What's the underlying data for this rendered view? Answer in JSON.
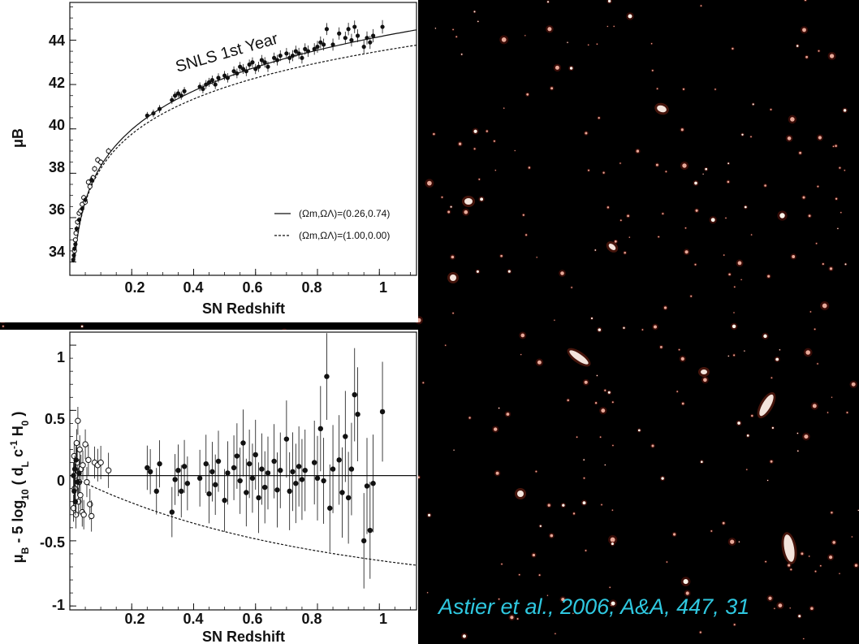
{
  "chart_data": [
    {
      "type": "scatter",
      "title": "",
      "annotation": "SNLS 1st Year",
      "xlabel": "SN Redshift",
      "ylabel": "μB",
      "xlim": [
        0.0,
        1.12
      ],
      "ylim": [
        33.4,
        45.7
      ],
      "xticks": [
        "0.2",
        "0.4",
        "0.6",
        "0.8",
        "1"
      ],
      "yticks": [
        "34",
        "36",
        "38",
        "40",
        "42",
        "44"
      ],
      "legend": {
        "placement": "bottom-right",
        "entries": [
          {
            "style": "solid",
            "label": "(Ωm,ΩΛ)=(0.26,0.74)",
            "omega_m": 0.26,
            "omega_l": 0.74
          },
          {
            "style": "dashed",
            "label": "(Ωm,ΩΛ)=(1.00,0.00)",
            "omega_m": 1.0,
            "omega_l": 0.0
          }
        ]
      },
      "series": [
        {
          "marker": "open-circle",
          "points": [
            [
              0.015,
              34.5
            ],
            [
              0.018,
              35.0
            ],
            [
              0.02,
              35.3
            ],
            [
              0.025,
              35.8
            ],
            [
              0.03,
              36.2
            ],
            [
              0.035,
              36.3
            ],
            [
              0.04,
              36.6
            ],
            [
              0.045,
              36.9
            ],
            [
              0.05,
              36.7
            ],
            [
              0.06,
              37.6
            ],
            [
              0.065,
              37.4
            ],
            [
              0.075,
              37.8
            ],
            [
              0.08,
              38.2
            ],
            [
              0.09,
              38.6
            ],
            [
              0.1,
              38.5
            ],
            [
              0.125,
              39.0
            ]
          ]
        },
        {
          "marker": "filled-circle",
          "points": [
            [
              0.011,
              34.1
            ],
            [
              0.013,
              34.3
            ],
            [
              0.015,
              34.6
            ],
            [
              0.018,
              34.8
            ],
            [
              0.022,
              35.5
            ],
            [
              0.03,
              35.9
            ],
            [
              0.04,
              36.4
            ],
            [
              0.05,
              36.8
            ],
            [
              0.07,
              37.7
            ],
            [
              0.25,
              40.6
            ],
            [
              0.27,
              40.7
            ],
            [
              0.29,
              40.9
            ],
            [
              0.33,
              41.3
            ],
            [
              0.34,
              41.5
            ],
            [
              0.35,
              41.6
            ],
            [
              0.36,
              41.5
            ],
            [
              0.37,
              41.7
            ],
            [
              0.42,
              41.9
            ],
            [
              0.43,
              41.8
            ],
            [
              0.44,
              42.0
            ],
            [
              0.45,
              42.1
            ],
            [
              0.46,
              42.2
            ],
            [
              0.47,
              42.0
            ],
            [
              0.48,
              42.3
            ],
            [
              0.5,
              42.4
            ],
            [
              0.51,
              42.3
            ],
            [
              0.53,
              42.6
            ],
            [
              0.54,
              42.5
            ],
            [
              0.55,
              42.8
            ],
            [
              0.56,
              42.7
            ],
            [
              0.57,
              42.6
            ],
            [
              0.58,
              42.9
            ],
            [
              0.59,
              43.0
            ],
            [
              0.6,
              42.7
            ],
            [
              0.61,
              42.8
            ],
            [
              0.62,
              43.1
            ],
            [
              0.63,
              43.0
            ],
            [
              0.64,
              42.8
            ],
            [
              0.66,
              43.2
            ],
            [
              0.67,
              43.1
            ],
            [
              0.68,
              43.3
            ],
            [
              0.7,
              43.4
            ],
            [
              0.71,
              43.2
            ],
            [
              0.72,
              43.3
            ],
            [
              0.73,
              43.5
            ],
            [
              0.74,
              43.4
            ],
            [
              0.75,
              43.2
            ],
            [
              0.76,
              43.6
            ],
            [
              0.77,
              43.5
            ],
            [
              0.79,
              43.6
            ],
            [
              0.8,
              43.7
            ],
            [
              0.81,
              43.9
            ],
            [
              0.82,
              43.8
            ],
            [
              0.83,
              44.5
            ],
            [
              0.85,
              43.8
            ],
            [
              0.87,
              44.3
            ],
            [
              0.89,
              44.1
            ],
            [
              0.9,
              44.5
            ],
            [
              0.91,
              44.0
            ],
            [
              0.92,
              44.6
            ],
            [
              0.93,
              44.2
            ],
            [
              0.95,
              43.7
            ],
            [
              0.96,
              44.1
            ],
            [
              0.97,
              43.9
            ],
            [
              0.98,
              44.2
            ],
            [
              1.01,
              44.6
            ]
          ]
        }
      ]
    },
    {
      "type": "scatter",
      "title": "",
      "xlabel": "SN Redshift",
      "ylabel": "μB - 5 log10 ( dL c-1 H0 )",
      "xlim": [
        0.0,
        1.12
      ],
      "ylim": [
        -1.03,
        1.1
      ],
      "xticks": [
        "0.2",
        "0.4",
        "0.6",
        "0.8",
        "1"
      ],
      "yticks": [
        "-1",
        "-0.5",
        "0",
        "0.5",
        "1"
      ],
      "reference_lines": [
        {
          "style": "solid",
          "description": "(Ωm,ΩΛ)=(0.26,0.74) model, residual 0"
        },
        {
          "style": "dashed",
          "description": "(Ωm,ΩΛ)=(1.00,0.00) model residual"
        }
      ],
      "series": [
        {
          "marker": "open-circle",
          "points": [
            [
              0.012,
              -0.25
            ],
            [
              0.014,
              0.15
            ],
            [
              0.016,
              -0.1
            ],
            [
              0.018,
              0.0
            ],
            [
              0.02,
              -0.3
            ],
            [
              0.022,
              0.25
            ],
            [
              0.024,
              0.1
            ],
            [
              0.026,
              0.42
            ],
            [
              0.028,
              -0.2
            ],
            [
              0.03,
              -0.05
            ],
            [
              0.032,
              0.2
            ],
            [
              0.034,
              -0.15
            ],
            [
              0.036,
              0.05
            ],
            [
              0.04,
              -0.28
            ],
            [
              0.042,
              0.08
            ],
            [
              0.045,
              -0.3
            ],
            [
              0.05,
              0.24
            ],
            [
              0.055,
              -0.05
            ],
            [
              0.06,
              0.12
            ],
            [
              0.065,
              -0.22
            ],
            [
              0.07,
              -0.31
            ],
            [
              0.08,
              0.1
            ],
            [
              0.09,
              0.08
            ],
            [
              0.1,
              0.1
            ],
            [
              0.125,
              0.04
            ]
          ]
        },
        {
          "marker": "filled-circle",
          "points": [
            [
              0.012,
              0.0
            ],
            [
              0.014,
              -0.12
            ],
            [
              0.016,
              0.05
            ],
            [
              0.018,
              -0.2
            ],
            [
              0.02,
              0.12
            ],
            [
              0.025,
              -0.05
            ],
            [
              0.03,
              0.02
            ],
            [
              0.25,
              0.06
            ],
            [
              0.26,
              0.03
            ],
            [
              0.28,
              -0.12
            ],
            [
              0.29,
              0.09
            ],
            [
              0.33,
              -0.28
            ],
            [
              0.34,
              -0.03
            ],
            [
              0.35,
              0.04
            ],
            [
              0.36,
              -0.12
            ],
            [
              0.37,
              0.07
            ],
            [
              0.38,
              -0.06
            ],
            [
              0.42,
              -0.02
            ],
            [
              0.44,
              0.09
            ],
            [
              0.45,
              -0.14
            ],
            [
              0.46,
              0.03
            ],
            [
              0.47,
              -0.07
            ],
            [
              0.48,
              0.11
            ],
            [
              0.5,
              -0.19
            ],
            [
              0.51,
              0.02
            ],
            [
              0.53,
              0.06
            ],
            [
              0.54,
              0.15
            ],
            [
              0.55,
              -0.04
            ],
            [
              0.56,
              0.25
            ],
            [
              0.57,
              -0.13
            ],
            [
              0.58,
              0.09
            ],
            [
              0.59,
              -0.02
            ],
            [
              0.6,
              0.16
            ],
            [
              0.61,
              -0.17
            ],
            [
              0.62,
              0.05
            ],
            [
              0.63,
              -0.09
            ],
            [
              0.64,
              0.02
            ],
            [
              0.66,
              0.11
            ],
            [
              0.67,
              -0.11
            ],
            [
              0.68,
              0.04
            ],
            [
              0.7,
              0.28
            ],
            [
              0.71,
              -0.12
            ],
            [
              0.72,
              0.03
            ],
            [
              0.73,
              -0.06
            ],
            [
              0.74,
              0.07
            ],
            [
              0.75,
              -0.03
            ],
            [
              0.76,
              0.04
            ],
            [
              0.79,
              0.1
            ],
            [
              0.8,
              -0.02
            ],
            [
              0.81,
              0.36
            ],
            [
              0.82,
              -0.04
            ],
            [
              0.83,
              0.76
            ],
            [
              0.84,
              -0.25
            ],
            [
              0.85,
              0.05
            ],
            [
              0.87,
              0.12
            ],
            [
              0.88,
              -0.13
            ],
            [
              0.89,
              0.3
            ],
            [
              0.9,
              -0.17
            ],
            [
              0.91,
              0.05
            ],
            [
              0.92,
              0.62
            ],
            [
              0.93,
              0.47
            ],
            [
              0.95,
              -0.5
            ],
            [
              0.96,
              -0.08
            ],
            [
              0.97,
              -0.42
            ],
            [
              0.98,
              -0.06
            ],
            [
              1.01,
              0.49
            ]
          ]
        }
      ]
    }
  ],
  "citation": "Astier et al., 2006, A&A, 447, 31"
}
